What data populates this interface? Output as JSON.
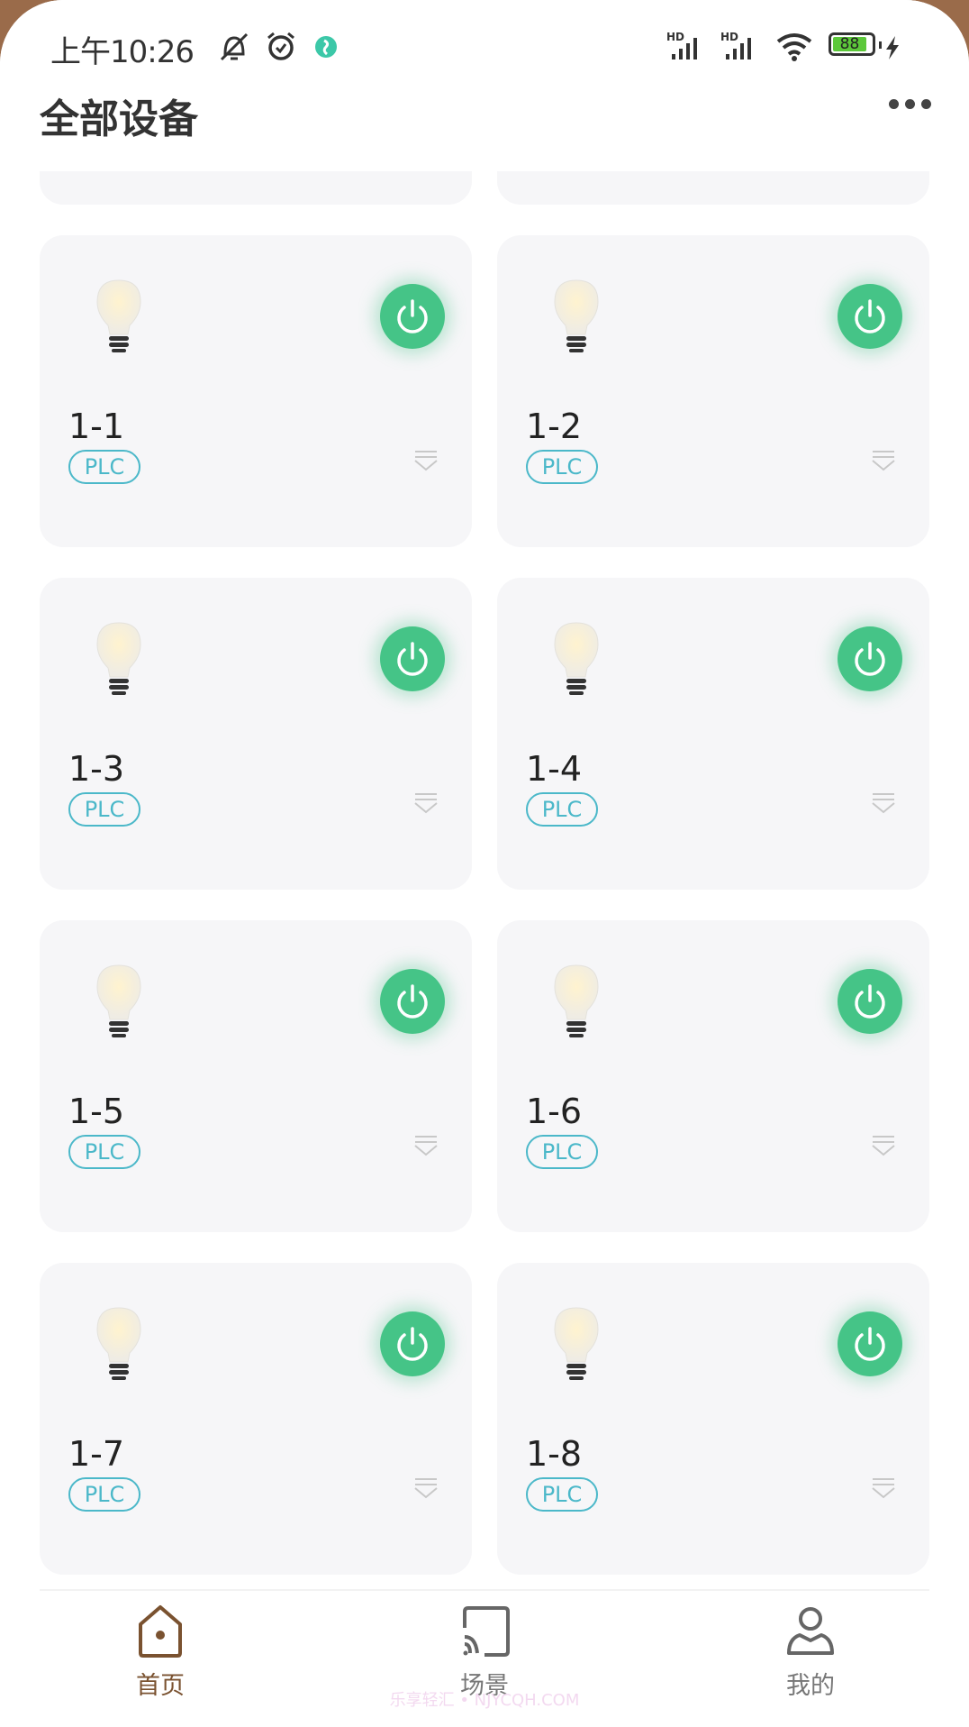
{
  "status_bar": {
    "time": "上午10:26",
    "battery": "88",
    "icons": [
      "mute-bell-icon",
      "alarm-icon",
      "app-notification-icon",
      "hd-signal-icon",
      "hd-signal-icon",
      "wifi-icon",
      "battery-icon",
      "charging-icon"
    ]
  },
  "header": {
    "title": "全部设备",
    "more_icon": "more-dots-icon"
  },
  "devices": [
    {
      "name": "1-1",
      "tag": "PLC",
      "on": true
    },
    {
      "name": "1-2",
      "tag": "PLC",
      "on": true
    },
    {
      "name": "1-3",
      "tag": "PLC",
      "on": true
    },
    {
      "name": "1-4",
      "tag": "PLC",
      "on": true
    },
    {
      "name": "1-5",
      "tag": "PLC",
      "on": true
    },
    {
      "name": "1-6",
      "tag": "PLC",
      "on": true
    },
    {
      "name": "1-7",
      "tag": "PLC",
      "on": true
    },
    {
      "name": "1-8",
      "tag": "PLC",
      "on": true
    }
  ],
  "nav": {
    "items": [
      {
        "label": "首页",
        "active": true
      },
      {
        "label": "场景",
        "active": false
      },
      {
        "label": "我的",
        "active": false
      }
    ]
  },
  "watermark": "乐享轻汇 • NJYCQH.COM",
  "colors": {
    "accent": "#45c487",
    "tag": "#4bb8c9",
    "nav_active": "#7a5230",
    "nav_inactive": "#777777"
  }
}
